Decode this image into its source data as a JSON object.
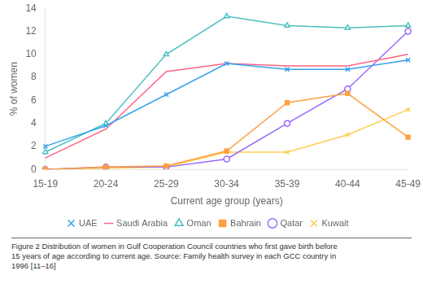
{
  "chart_data": {
    "type": "line",
    "xlabel": "Current age group (years)",
    "ylabel": "% of women",
    "categories": [
      "15-19",
      "20-24",
      "25-29",
      "30-34",
      "35-39",
      "40-44",
      "45-49"
    ],
    "series": [
      {
        "name": "UAE",
        "marker": "x-open",
        "values": [
          2.0,
          3.8,
          6.5,
          9.2,
          8.7,
          8.7,
          9.5
        ]
      },
      {
        "name": "Saudi Arabia",
        "marker": "none",
        "values": [
          1.0,
          3.5,
          8.5,
          9.2,
          9.0,
          9.0,
          10.0
        ]
      },
      {
        "name": "Oman",
        "marker": "triangle-open",
        "values": [
          1.5,
          4.0,
          10.0,
          13.3,
          12.5,
          12.3,
          12.5
        ]
      },
      {
        "name": "Bahrain",
        "marker": "square-filled",
        "values": [
          0.0,
          0.2,
          0.3,
          1.6,
          5.8,
          6.6,
          2.8
        ]
      },
      {
        "name": "Qatar",
        "marker": "circle-open",
        "values": [
          0.0,
          0.2,
          0.2,
          0.9,
          4.0,
          7.0,
          12.0
        ]
      },
      {
        "name": "Kuwait",
        "marker": "x-open",
        "values": [
          0.0,
          0.1,
          0.2,
          1.5,
          1.5,
          3.0,
          5.2
        ]
      }
    ],
    "ylim": [
      0,
      14
    ],
    "yticks": [
      0,
      2,
      4,
      6,
      8,
      10,
      12,
      14
    ],
    "grid": false,
    "legend": "bottom",
    "caption": [
      "Figure 2 Distribution of women in Gulf Cooperation Council countries who first gave birth before",
      "15 years of age according to current age. Source: Family health survey in each GCC country in",
      "1996 [11–16]"
    ]
  }
}
